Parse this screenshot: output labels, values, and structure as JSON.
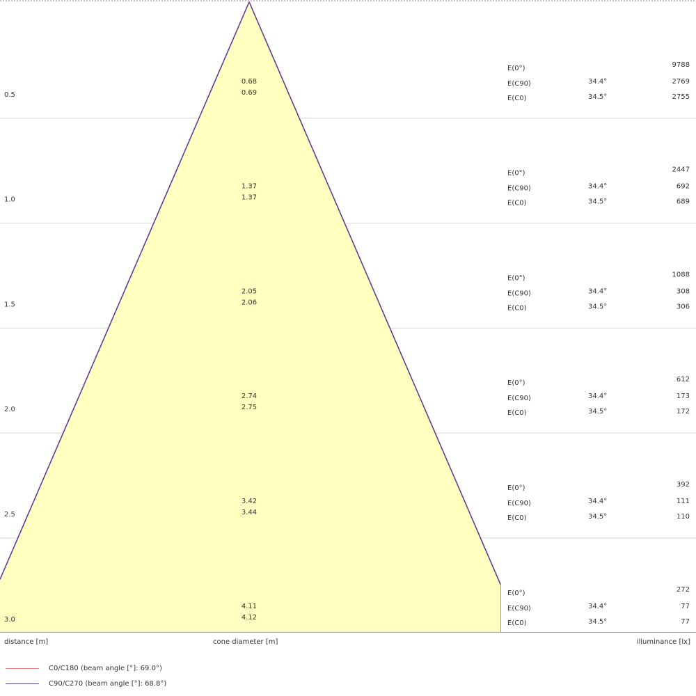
{
  "chart_data": {
    "type": "beam-cone",
    "xlabel": "distance [m]",
    "center_label": "cone diameter [m]",
    "ylabel": "illuminance [lx]",
    "distances": [
      "0.5",
      "1.0",
      "1.5",
      "2.0",
      "2.5",
      "3.0"
    ],
    "distance_values": [
      0.5,
      1.0,
      1.5,
      2.0,
      2.5,
      3.0
    ],
    "diameters_c0": [
      0.68,
      1.37,
      2.05,
      2.74,
      3.42,
      4.11
    ],
    "diameters_c90": [
      "0.69",
      "1.37",
      "2.06",
      "2.75",
      "3.44",
      "4.12"
    ],
    "diameters_c0_text": [
      "0.68",
      "1.37",
      "2.05",
      "2.74",
      "3.42",
      "4.11"
    ],
    "rows": [
      {
        "e0_label": "E(0°)",
        "e0": "9788",
        "ec90_label": "E(C90)",
        "ec90_angle": "34.4°",
        "ec90": "2769",
        "ec0_label": "E(C0)",
        "ec0_angle": "34.5°",
        "ec0": "2755"
      },
      {
        "e0_label": "E(0°)",
        "e0": "2447",
        "ec90_label": "E(C90)",
        "ec90_angle": "34.4°",
        "ec90": "692",
        "ec0_label": "E(C0)",
        "ec0_angle": "34.5°",
        "ec0": "689"
      },
      {
        "e0_label": "E(0°)",
        "e0": "1088",
        "ec90_label": "E(C90)",
        "ec90_angle": "34.4°",
        "ec90": "308",
        "ec0_label": "E(C0)",
        "ec0_angle": "34.5°",
        "ec0": "306"
      },
      {
        "e0_label": "E(0°)",
        "e0": "612",
        "ec90_label": "E(C90)",
        "ec90_angle": "34.4°",
        "ec90": "173",
        "ec0_label": "E(C0)",
        "ec0_angle": "34.5°",
        "ec0": "172"
      },
      {
        "e0_label": "E(0°)",
        "e0": "392",
        "ec90_label": "E(C90)",
        "ec90_angle": "34.4°",
        "ec90": "111",
        "ec0_label": "E(C0)",
        "ec0_angle": "34.5°",
        "ec0": "110"
      },
      {
        "e0_label": "E(0°)",
        "e0": "272",
        "ec90_label": "E(C90)",
        "ec90_angle": "34.4°",
        "ec90": "77",
        "ec0_label": "E(C0)",
        "ec0_angle": "34.5°",
        "ec0": "77"
      }
    ],
    "legend": [
      {
        "label": "C0/C180 (beam angle [°]: 69.0°)",
        "color": "#f08080"
      },
      {
        "label": "C90/C270 (beam angle [°]: 68.8°)",
        "color": "#4b3f9e"
      }
    ],
    "colors": {
      "cone_fill": "#ffffc0",
      "cone_edge": "#6a3d9a",
      "grid": "#d8d8d8",
      "axis": "#999999"
    }
  }
}
